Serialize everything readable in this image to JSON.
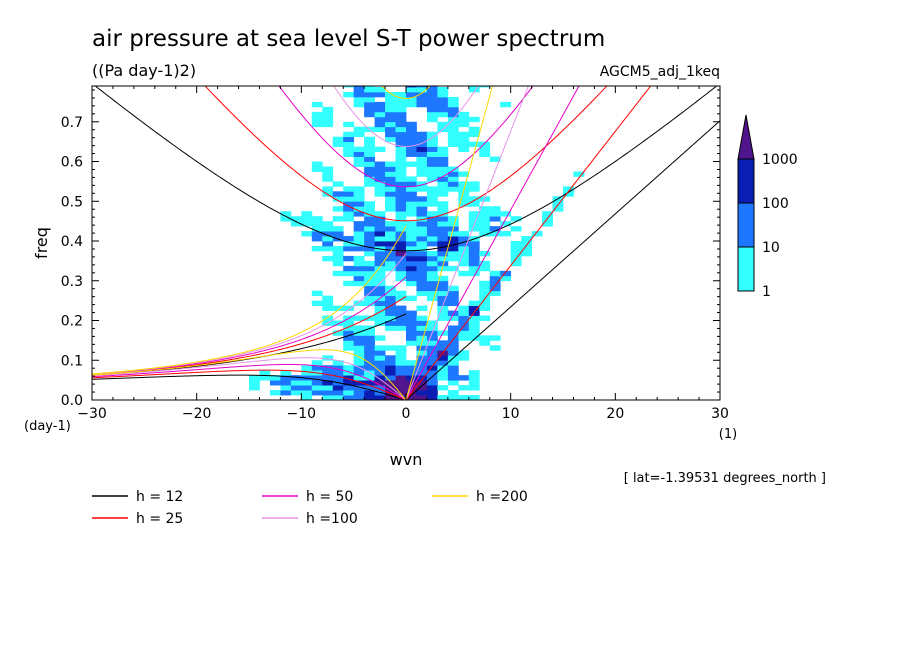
{
  "chart_data": {
    "type": "heatmap",
    "title": "air pressure at sea level S-T power spectrum",
    "units": "((Pa day-1)2)",
    "subtitle_right": "AGCM5_adj_1keq",
    "xlabel": "wvn",
    "ylabel": "freq",
    "x_unit_label": "(1)",
    "y_unit_label": "(day-1)",
    "xlim": [
      -30,
      30
    ],
    "ylim": [
      0,
      0.79
    ],
    "x_ticks": [
      -30,
      -20,
      -10,
      0,
      10,
      20,
      30
    ],
    "y_ticks": [
      0.0,
      0.1,
      0.2,
      0.3,
      0.4,
      0.5,
      0.6,
      0.7
    ],
    "annotation": "[ lat=-1.39531 degrees_north ]",
    "colorbar": {
      "levels": [
        1,
        10,
        100,
        1000
      ],
      "colors": [
        "#33ffff",
        "#1e78ff",
        "#0a1eb4",
        "#50148c"
      ]
    },
    "dispersion_curves": [
      {
        "label": "h = 12",
        "h": 12,
        "color": "#000000"
      },
      {
        "label": "h = 25",
        "h": 25,
        "color": "#ff0000"
      },
      {
        "label": "h = 50",
        "h": 50,
        "color": "#e600c8"
      },
      {
        "label": "h =100",
        "h": 100,
        "color": "#e695e6"
      },
      {
        "label": "h =200",
        "h": 200,
        "color": "#ffd700"
      }
    ]
  }
}
